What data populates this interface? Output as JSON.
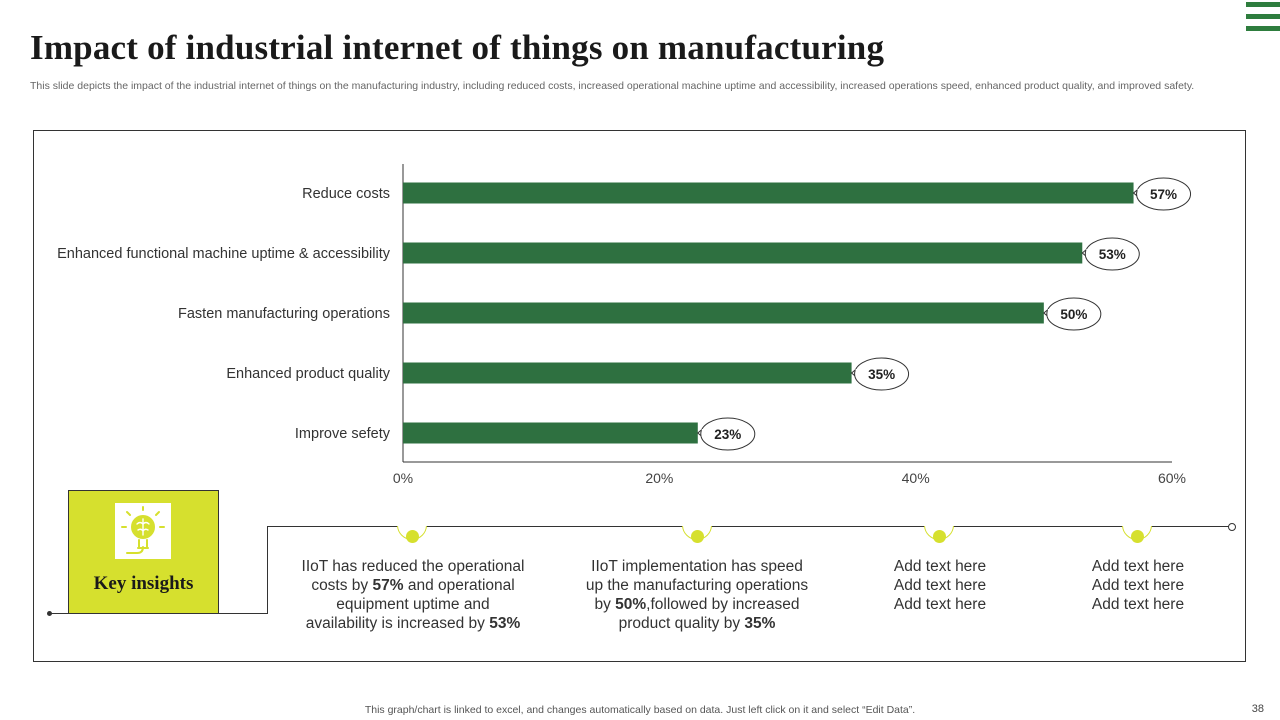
{
  "title": "Impact of industrial internet of things on manufacturing",
  "subtitle": "This slide depicts the impact of the industrial internet of things on the manufacturing industry, including reduced costs, increased operational machine uptime and accessibility, increased operations speed, enhanced product quality, and improved safety.",
  "colors": {
    "bar": "#2e7040",
    "accent": "#d6e02e",
    "axis": "#333333",
    "brand": "#2e7d3e"
  },
  "chart_data": {
    "type": "bar",
    "orientation": "horizontal",
    "categories": [
      "Reduce costs",
      "Enhanced functional machine uptime & accessibility",
      "Fasten manufacturing operations",
      "Enhanced product quality",
      "Improve sefety"
    ],
    "values": [
      57,
      53,
      50,
      35,
      23
    ],
    "data_labels": [
      "57%",
      "53%",
      "50%",
      "35%",
      "23%"
    ],
    "xlim": [
      0,
      60
    ],
    "xticks": [
      0,
      20,
      40,
      60
    ],
    "xtick_labels": [
      "0%",
      "20%",
      "40%",
      "60%"
    ],
    "title": "",
    "xlabel": "",
    "ylabel": "",
    "grid": false
  },
  "insights": {
    "label": "Key insights",
    "icon": "lightbulb-brain-icon",
    "items": [
      {
        "lines": [
          [
            {
              "t": "IIoT  has reduced the operational"
            }
          ],
          [
            {
              "t": "costs by "
            },
            {
              "t": "57%",
              "b": true
            },
            {
              "t": " and operational"
            }
          ],
          [
            {
              "t": "equipment uptime and"
            }
          ],
          [
            {
              "t": "availability is increased by "
            },
            {
              "t": "53%",
              "b": true
            }
          ]
        ]
      },
      {
        "lines": [
          [
            {
              "t": "IIoT  implementation has speed"
            }
          ],
          [
            {
              "t": "up the manufacturing  operations"
            }
          ],
          [
            {
              "t": "by "
            },
            {
              "t": "50%",
              "b": true
            },
            {
              "t": ",followed by increased"
            }
          ],
          [
            {
              "t": "product quality by "
            },
            {
              "t": "35%",
              "b": true
            }
          ]
        ]
      },
      {
        "lines": [
          [
            {
              "t": "Add text here"
            }
          ],
          [
            {
              "t": "Add text here"
            }
          ],
          [
            {
              "t": "Add text here"
            }
          ]
        ]
      },
      {
        "lines": [
          [
            {
              "t": "Add text here"
            }
          ],
          [
            {
              "t": "Add text here"
            }
          ],
          [
            {
              "t": "Add text here"
            }
          ]
        ]
      }
    ]
  },
  "footer": "This graph/chart is linked to excel,  and changes automatically based on data. Just left click on it and select “Edit Data”.",
  "page_number": "38"
}
